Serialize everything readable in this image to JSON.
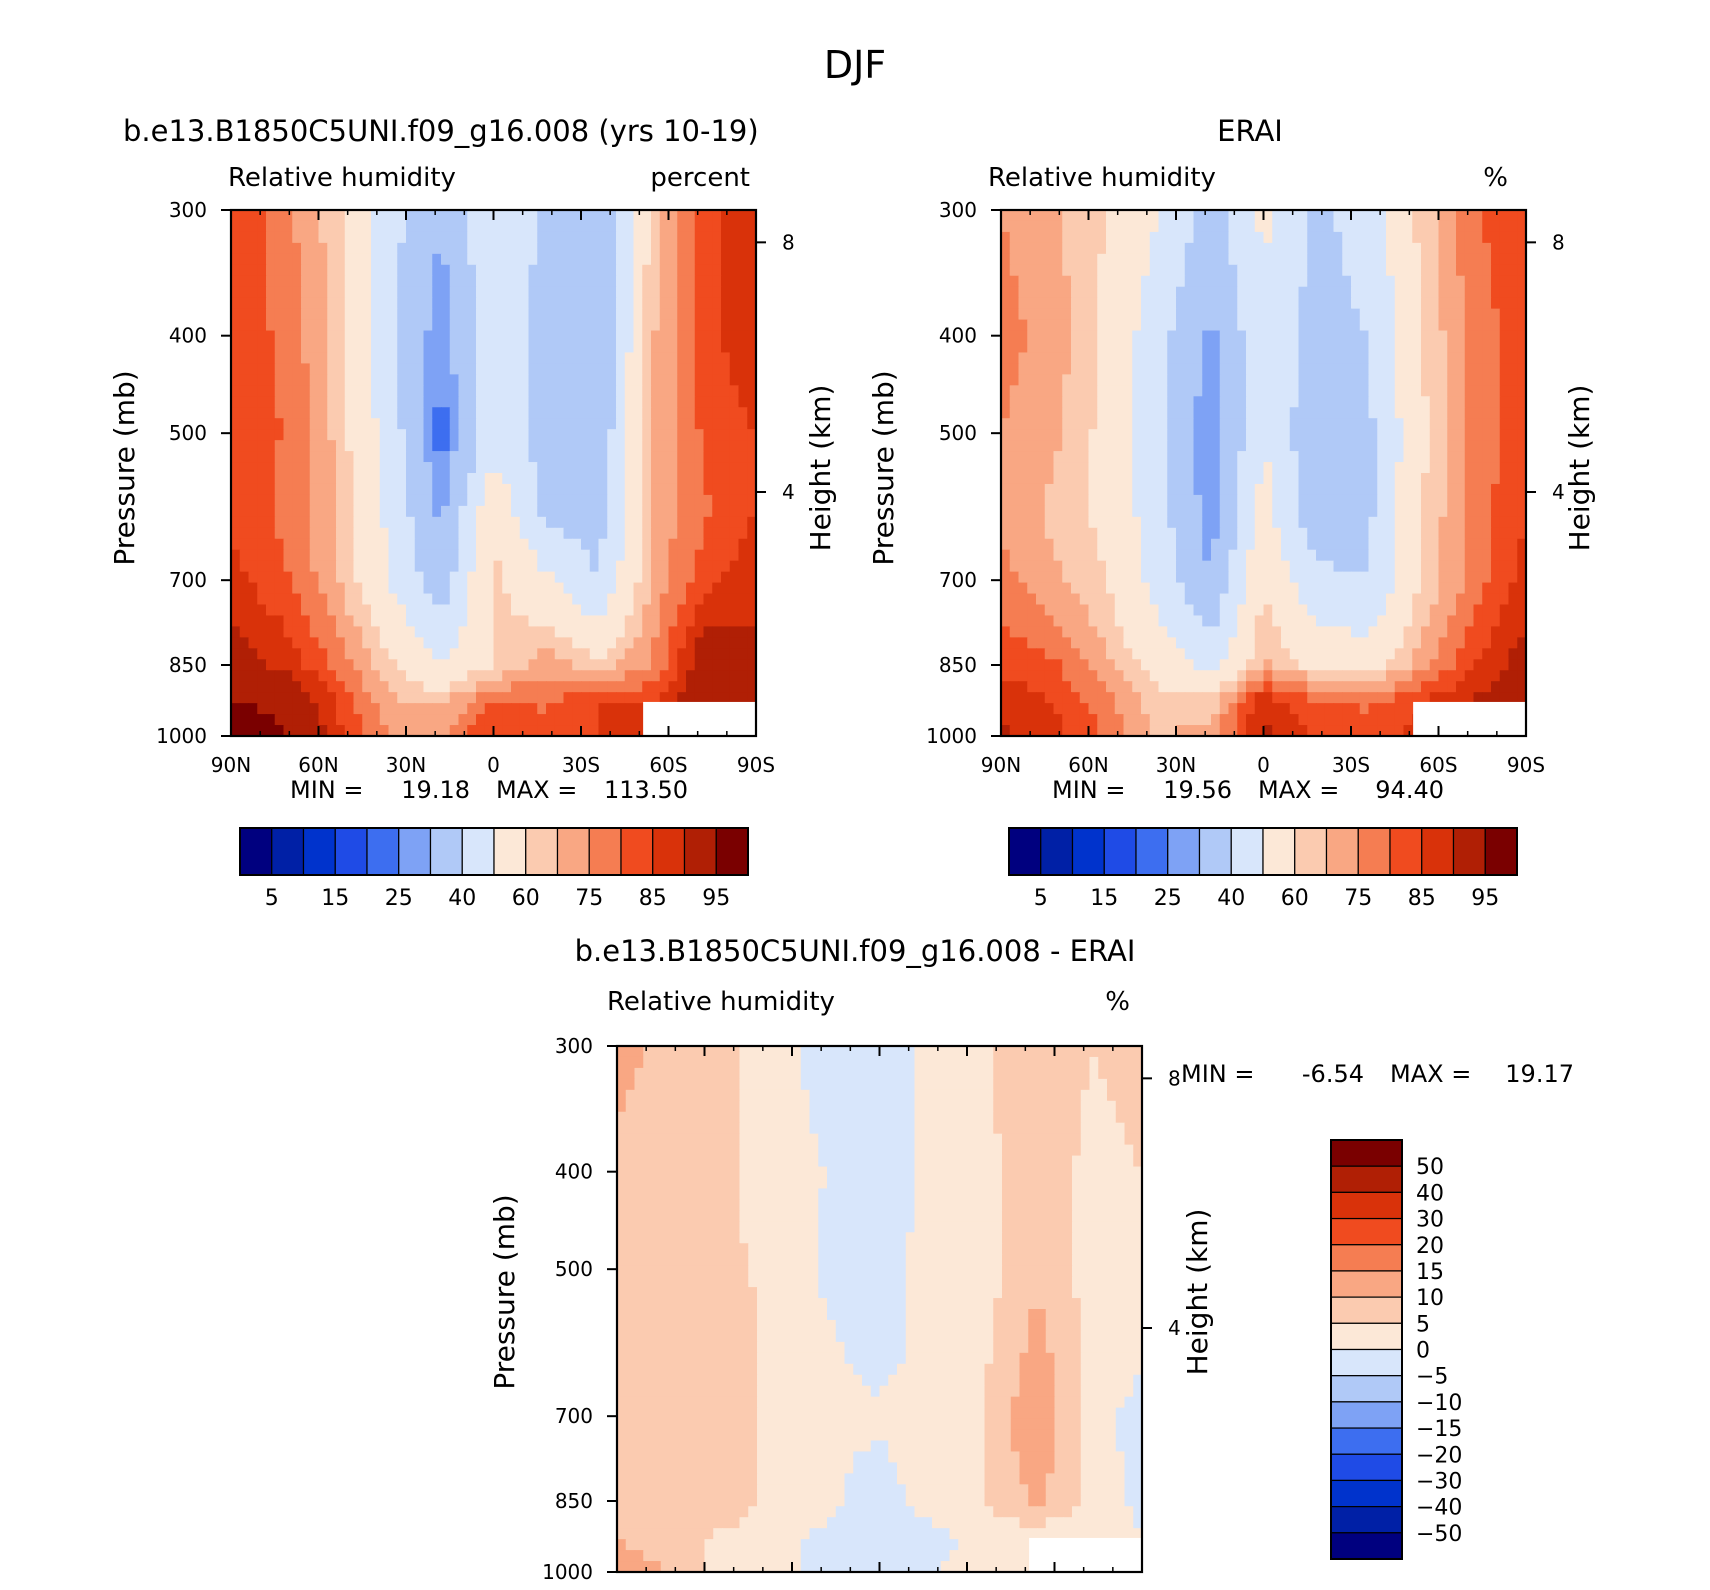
{
  "figure": {
    "title": "DJF"
  },
  "chart_data": [
    {
      "type": "heatmap",
      "title": "b.e13.B1850C5UNI.f09_g16.008 (yrs 10-19)",
      "subtitle_left": "Relative humidity",
      "units": "percent",
      "ylabel": "Pressure (mb)",
      "y2label": "Height (km)",
      "x_ticks": [
        "90N",
        "60N",
        "30N",
        "0",
        "30S",
        "60S",
        "90S"
      ],
      "y_ticks": [
        "300",
        "400",
        "500",
        "700",
        "850",
        "1000"
      ],
      "y2_ticks": [
        "8",
        "4"
      ],
      "min_label": "MIN =",
      "min_value": "19.18",
      "max_label": "MAX =",
      "max_value": "113.50",
      "colorbar_ticks": [
        "5",
        "15",
        "25",
        "40",
        "60",
        "75",
        "85",
        "95"
      ],
      "x_lat": [
        90,
        72,
        54,
        36,
        18,
        0,
        -18,
        -36,
        -54,
        -72,
        -90
      ],
      "y_pressure": [
        300,
        400,
        500,
        600,
        700,
        850,
        925,
        1000
      ],
      "z": [
        [
          80,
          72,
          62,
          44,
          30,
          50,
          38,
          30,
          62,
          78,
          85
        ],
        [
          78,
          74,
          64,
          42,
          26,
          46,
          36,
          30,
          64,
          78,
          84
        ],
        [
          76,
          75,
          64,
          46,
          22,
          46,
          36,
          32,
          64,
          76,
          80
        ],
        [
          78,
          74,
          66,
          48,
          28,
          58,
          38,
          36,
          66,
          74,
          80
        ],
        [
          82,
          76,
          66,
          50,
          34,
          62,
          52,
          40,
          66,
          78,
          84
        ],
        [
          88,
          84,
          74,
          62,
          50,
          60,
          68,
          62,
          70,
          90,
          86
        ],
        [
          96,
          92,
          80,
          66,
          64,
          76,
          74,
          80,
          80,
          90,
          88
        ],
        [
          100,
          96,
          82,
          70,
          70,
          80,
          78,
          80,
          82,
          90,
          88
        ]
      ]
    },
    {
      "type": "heatmap",
      "title": "ERAI",
      "subtitle_left": "Relative humidity",
      "units": "%",
      "ylabel": "Pressure (mb)",
      "y2label": "Height (km)",
      "x_ticks": [
        "90N",
        "60N",
        "30N",
        "0",
        "30S",
        "60S",
        "90S"
      ],
      "y_ticks": [
        "300",
        "400",
        "500",
        "700",
        "850",
        "1000"
      ],
      "y2_ticks": [
        "8",
        "4"
      ],
      "min_label": "MIN =",
      "min_value": "19.56",
      "max_label": "MAX =",
      "max_value": "94.40",
      "colorbar_ticks": [
        "5",
        "15",
        "25",
        "40",
        "60",
        "75",
        "85",
        "95"
      ],
      "x_lat": [
        90,
        72,
        54,
        36,
        18,
        0,
        -18,
        -36,
        -54,
        -72,
        -90
      ],
      "y_pressure": [
        300,
        400,
        500,
        600,
        700,
        850,
        925,
        1000
      ],
      "z": [
        [
          70,
          66,
          60,
          50,
          36,
          52,
          38,
          44,
          62,
          74,
          80
        ],
        [
          72,
          68,
          58,
          44,
          28,
          48,
          36,
          40,
          60,
          72,
          78
        ],
        [
          70,
          66,
          58,
          42,
          24,
          50,
          32,
          38,
          58,
          72,
          78
        ],
        [
          68,
          64,
          58,
          44,
          26,
          54,
          34,
          38,
          60,
          72,
          80
        ],
        [
          72,
          66,
          60,
          46,
          30,
          60,
          42,
          40,
          60,
          72,
          82
        ],
        [
          78,
          76,
          66,
          56,
          46,
          66,
          58,
          56,
          68,
          80,
          88
        ],
        [
          84,
          80,
          72,
          62,
          62,
          84,
          76,
          74,
          80,
          86,
          90
        ],
        [
          86,
          82,
          74,
          64,
          68,
          86,
          80,
          78,
          82,
          84,
          90
        ]
      ]
    },
    {
      "type": "heatmap",
      "title": "b.e13.B1850C5UNI.f09_g16.008 - ERAI",
      "subtitle_left": "Relative humidity",
      "units": "%",
      "ylabel": "Pressure (mb)",
      "y2label": "Height (km)",
      "x_ticks": [
        "90N",
        "60N",
        "30N",
        "0",
        "30S",
        "60S",
        "90S"
      ],
      "y_ticks": [
        "300",
        "400",
        "500",
        "700",
        "850",
        "1000"
      ],
      "y2_ticks": [
        "8",
        "4"
      ],
      "min_label": "MIN =",
      "min_value": "-6.54",
      "max_label": "MAX =",
      "max_value": "19.17",
      "colorbar_ticks": [
        "50",
        "40",
        "30",
        "20",
        "15",
        "10",
        "5",
        "0",
        "-5",
        "-10",
        "-15",
        "-20",
        "-30",
        "-40",
        "-50"
      ],
      "x_lat": [
        90,
        72,
        54,
        36,
        18,
        0,
        -18,
        -36,
        -54,
        -72,
        -90
      ],
      "y_pressure": [
        300,
        400,
        500,
        600,
        700,
        850,
        925,
        1000
      ],
      "z": [
        [
          12,
          8,
          6,
          2,
          -2,
          -3,
          2,
          4,
          10,
          5,
          6
        ],
        [
          8,
          7,
          6,
          2,
          0,
          -4,
          2,
          4,
          7,
          4,
          5
        ],
        [
          8,
          7,
          7,
          3,
          -1,
          -2,
          2,
          3,
          9,
          3,
          3
        ],
        [
          8,
          8,
          10,
          3,
          1,
          -2,
          2,
          4,
          12,
          4,
          1
        ],
        [
          8,
          8,
          10,
          3,
          1,
          1,
          3,
          5,
          15,
          2,
          -2
        ],
        [
          8,
          8,
          9,
          3,
          1,
          -3,
          3,
          5,
          11,
          3,
          -1
        ],
        [
          10,
          8,
          4,
          1,
          -1,
          -3,
          -2,
          2,
          2,
          2,
          0
        ],
        [
          12,
          10,
          3,
          0,
          0,
          -2,
          0,
          2,
          0,
          2,
          0
        ]
      ]
    }
  ],
  "colors": {
    "rh_scale": [
      "#00007f",
      "#0020a6",
      "#0033cc",
      "#1f4be6",
      "#3d6ef0",
      "#7ea2f5",
      "#b0c9f7",
      "#d8e6fb",
      "#fce8d7",
      "#fbcbb0",
      "#f9a783",
      "#f57d52",
      "#f04b1f",
      "#d9320a",
      "#b01f05",
      "#7a0000"
    ],
    "diff_scale": [
      "#00007f",
      "#0020a6",
      "#0033cc",
      "#1f4be6",
      "#3d6ef0",
      "#7ea2f5",
      "#b0c9f7",
      "#d8e6fb",
      "#fce8d7",
      "#fbcbb0",
      "#f9a783",
      "#f57d52",
      "#f04b1f",
      "#d9320a",
      "#b01f05",
      "#7a0000"
    ],
    "missing": "#ffffff"
  }
}
